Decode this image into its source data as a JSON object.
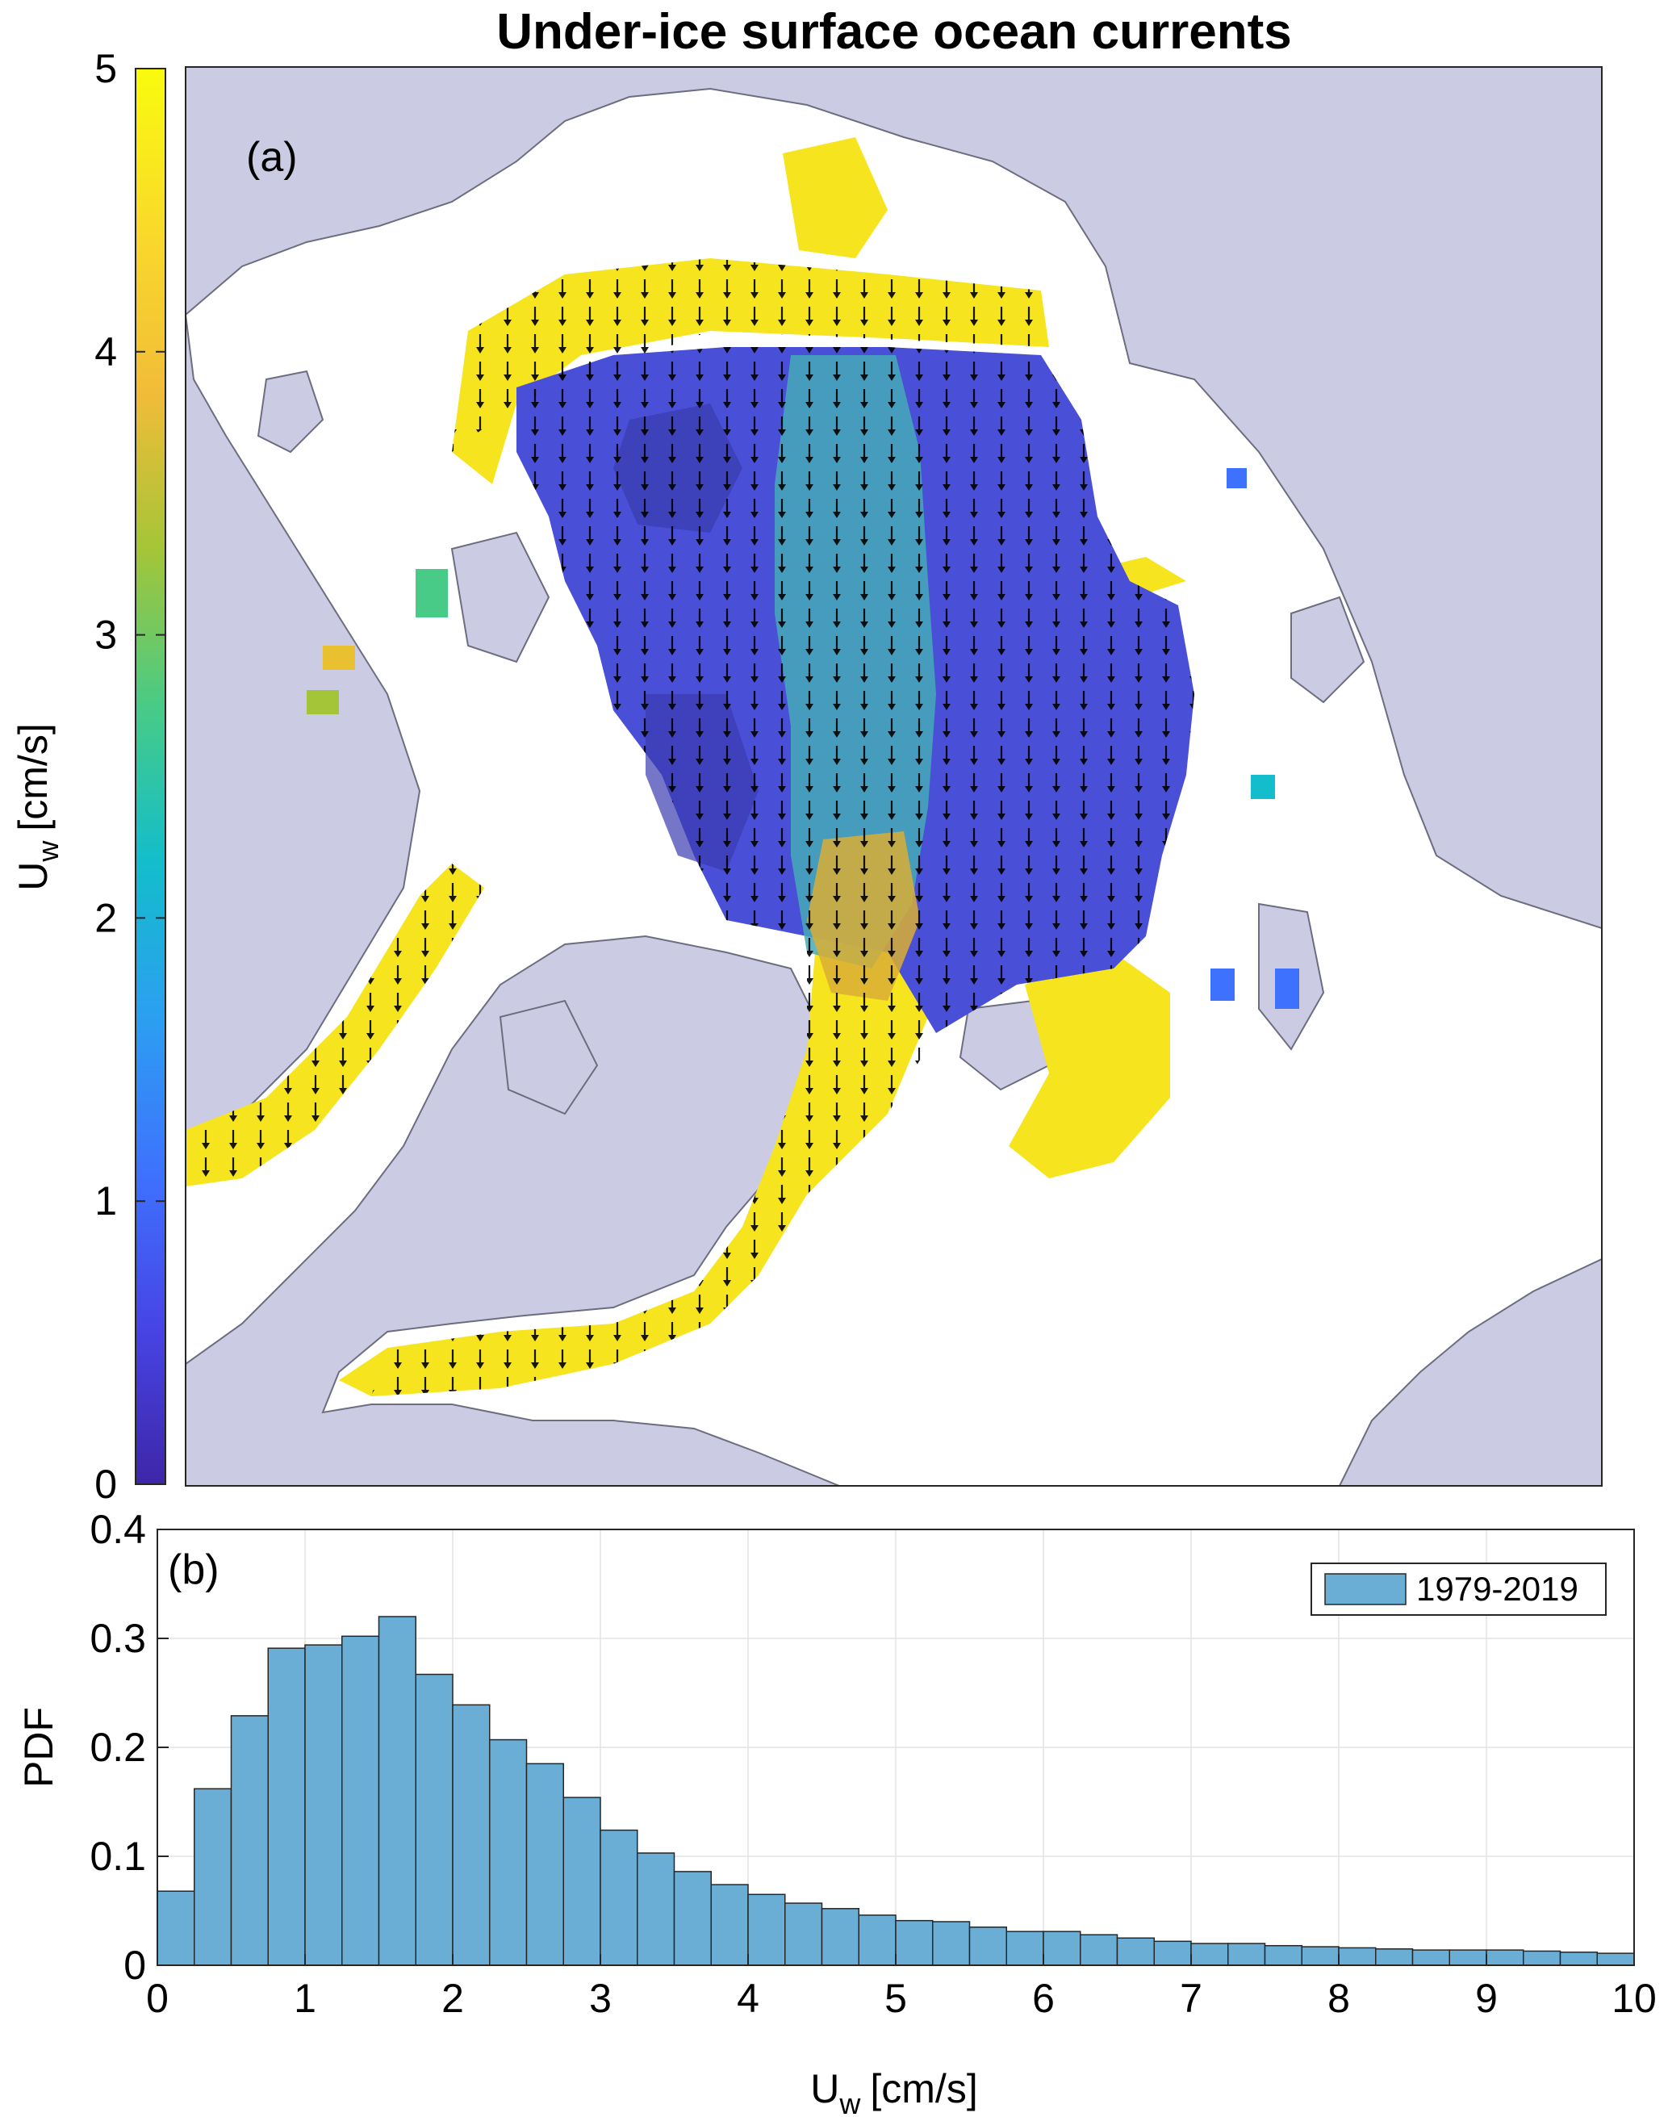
{
  "figure": {
    "title": "Under-ice surface ocean currents"
  },
  "chart_data": [
    {
      "type": "heatmap",
      "panel_label": "(a)",
      "description_kind": "map",
      "colorbar": {
        "label_main": "U",
        "label_sub": "w",
        "label_unit": "[cm/s]",
        "range": [
          0,
          5
        ],
        "ticks": [
          "0",
          "1",
          "2",
          "3",
          "4",
          "5"
        ],
        "colors": [
          "#3e26a8",
          "#4744e5",
          "#3e72fe",
          "#2c9ff1",
          "#13bdcb",
          "#48cb86",
          "#a4c537",
          "#f1bc38",
          "#f9d82b",
          "#f9fb0e"
        ]
      },
      "colors": {
        "land": "#cbcbe3",
        "coast": "#6d6d80",
        "nodata": "#ffffff",
        "arrow": "#000000"
      }
    },
    {
      "type": "bar",
      "panel_label": "(b)",
      "xlabel_main": "U",
      "xlabel_sub": "w",
      "xlabel_unit": "[cm/s]",
      "ylabel": "PDF",
      "xlim": [
        0,
        10
      ],
      "ylim": [
        0,
        0.4
      ],
      "xticks": [
        "0",
        "1",
        "2",
        "3",
        "4",
        "5",
        "6",
        "7",
        "8",
        "9",
        "10"
      ],
      "yticks": [
        "0",
        "0.1",
        "0.2",
        "0.3",
        "0.4"
      ],
      "grid": true,
      "legend_position": "top-right",
      "bin_width": 0.25,
      "series": [
        {
          "name": "1979-2019",
          "color": "#6aaed6",
          "values": [
            0.068,
            0.162,
            0.229,
            0.291,
            0.294,
            0.302,
            0.32,
            0.267,
            0.239,
            0.207,
            0.185,
            0.154,
            0.124,
            0.103,
            0.086,
            0.074,
            0.065,
            0.057,
            0.052,
            0.046,
            0.041,
            0.04,
            0.035,
            0.031,
            0.031,
            0.028,
            0.025,
            0.022,
            0.02,
            0.02,
            0.018,
            0.017,
            0.016,
            0.015,
            0.014,
            0.014,
            0.014,
            0.013,
            0.012,
            0.011
          ]
        }
      ]
    }
  ]
}
